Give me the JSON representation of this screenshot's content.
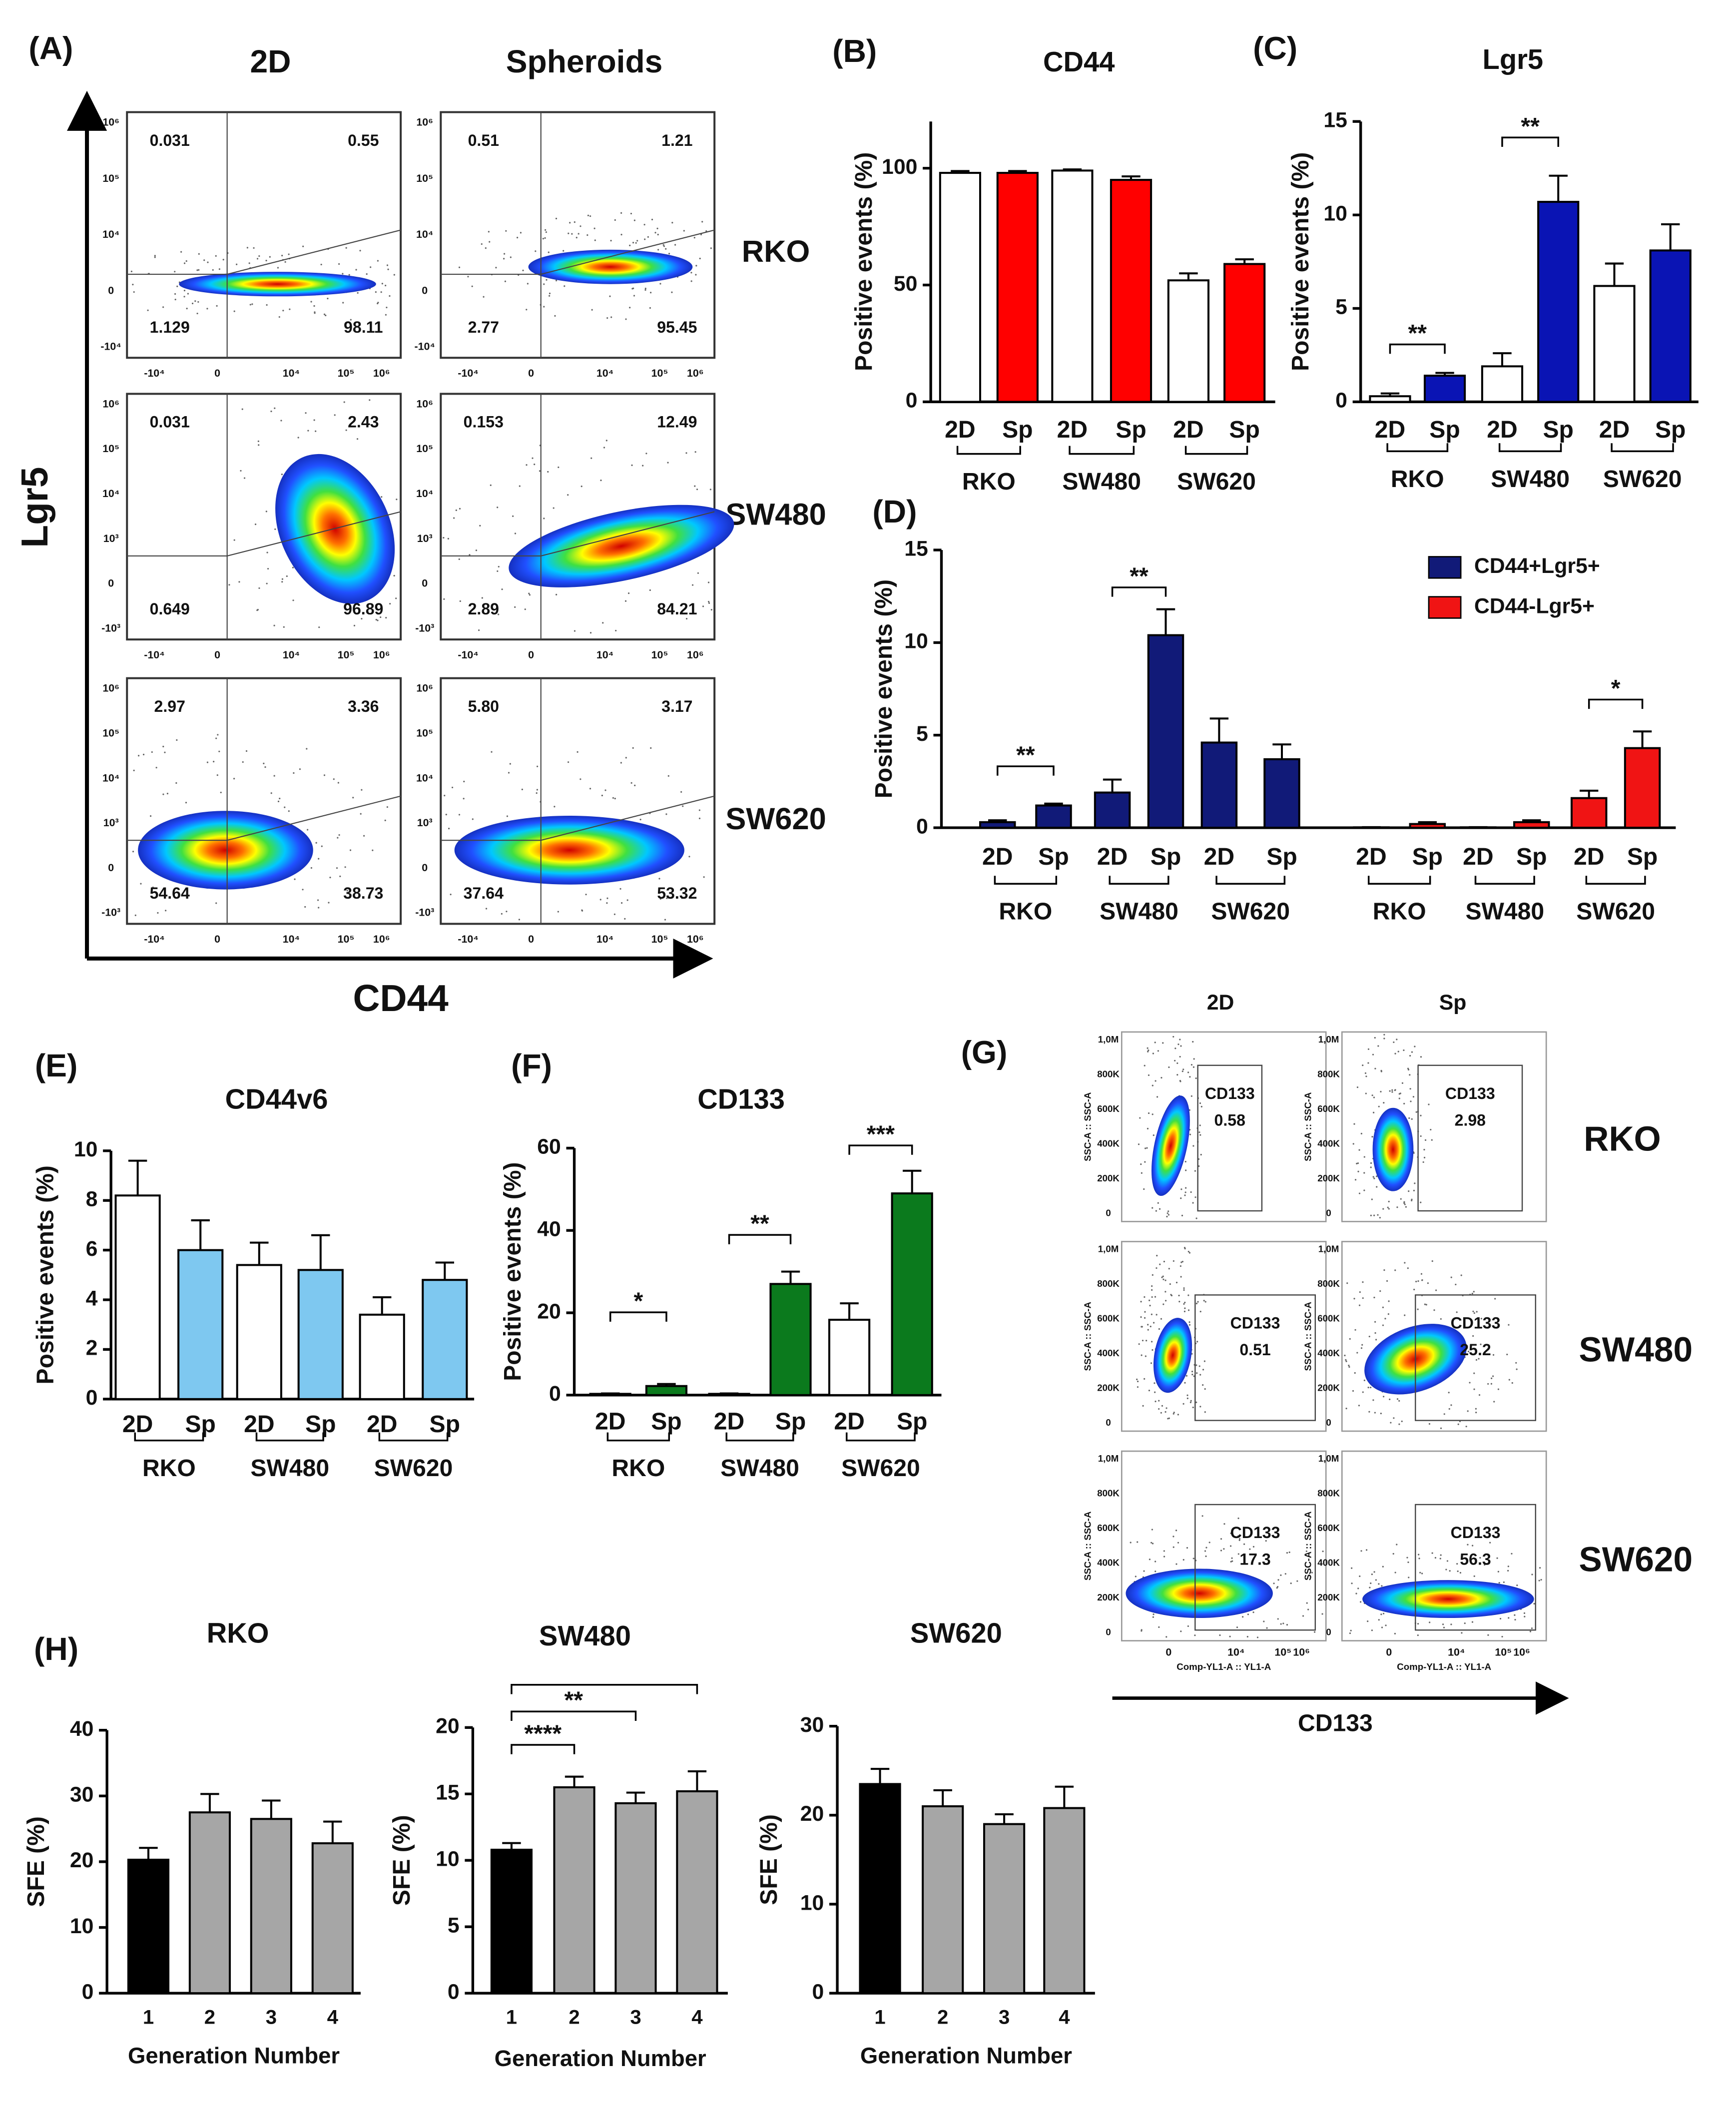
{
  "chart_data": [
    {
      "type": "flow",
      "panel": "(A)",
      "columns": [
        "2D",
        "Spheroids"
      ],
      "rows": [
        "RKO",
        "SW480",
        "SW620"
      ],
      "x_label": "CD44",
      "y_label": "Lgr5",
      "row_yticks": [
        [
          "10⁶",
          "10⁵",
          "10⁴",
          "0",
          "-10⁴"
        ],
        [
          "10⁶",
          "10⁵",
          "10⁴",
          "10³",
          "0",
          "-10³"
        ],
        [
          "10⁶",
          "10⁵",
          "10⁴",
          "10³",
          "0",
          "-10³"
        ]
      ],
      "xticks": [
        "-10⁴",
        "0",
        "10⁴",
        "10⁵",
        "10⁶"
      ],
      "plots": [
        {
          "quadrants": [
            "0.031",
            "0.55",
            "1.129",
            "98.11"
          ]
        },
        {
          "quadrants": [
            "0.51",
            "1.21",
            "2.77",
            "95.45"
          ]
        },
        {
          "quadrants": [
            "0.031",
            "2.43",
            "0.649",
            "96.89"
          ]
        },
        {
          "quadrants": [
            "0.153",
            "12.49",
            "2.89",
            "84.21"
          ]
        },
        {
          "quadrants": [
            "2.97",
            "3.36",
            "54.64",
            "38.73"
          ]
        },
        {
          "quadrants": [
            "5.80",
            "3.17",
            "37.64",
            "53.32"
          ]
        }
      ]
    },
    {
      "type": "bar",
      "panel": "(B)",
      "title": "CD44",
      "y_label": "Positive events (%)",
      "categories": [
        "2D",
        "Sp",
        "2D",
        "Sp",
        "2D",
        "Sp"
      ],
      "groups": [
        "RKO",
        "SW480",
        "SW620"
      ],
      "values": [
        98,
        98,
        99,
        95,
        52,
        59
      ],
      "errors": [
        0.8,
        0.8,
        0.5,
        1.5,
        3,
        2
      ],
      "colors": [
        "#ffffff",
        "#ff0000",
        "#ffffff",
        "#ff0000",
        "#ffffff",
        "#ff0000"
      ],
      "ylim": [
        0,
        120
      ],
      "yticks": [
        0,
        50,
        100
      ]
    },
    {
      "type": "bar",
      "panel": "(C)",
      "title": "Lgr5",
      "y_label": "Positive events (%)",
      "categories": [
        "2D",
        "Sp",
        "2D",
        "Sp",
        "2D",
        "Sp"
      ],
      "groups": [
        "RKO",
        "SW480",
        "SW620"
      ],
      "values": [
        0.3,
        1.4,
        1.9,
        10.7,
        6.2,
        8.1
      ],
      "errors": [
        0.15,
        0.15,
        0.7,
        1.4,
        1.2,
        1.4
      ],
      "colors": [
        "#ffffff",
        "#0a14b4",
        "#ffffff",
        "#0a14b4",
        "#ffffff",
        "#0a14b4"
      ],
      "ylim": [
        0,
        15
      ],
      "yticks": [
        0,
        5,
        10,
        15
      ],
      "annotations": [
        "**",
        "**"
      ]
    },
    {
      "type": "bar",
      "panel": "(D)",
      "y_label": "Positive events (%)",
      "categories": [
        "2D",
        "Sp",
        "2D",
        "Sp",
        "2D",
        "Sp"
      ],
      "groups": [
        "RKO",
        "SW480",
        "SW620"
      ],
      "series": [
        {
          "name": "CD44+Lgr5+",
          "color": "#111a78",
          "values": [
            0.3,
            1.2,
            1.9,
            10.4,
            4.6,
            3.7
          ],
          "errors": [
            0.1,
            0.1,
            0.7,
            1.4,
            1.3,
            0.8
          ]
        },
        {
          "name": "CD44-Lgr5+",
          "color": "#f01414",
          "values": [
            0.02,
            0.2,
            0.02,
            0.3,
            1.6,
            4.3
          ],
          "errors": [
            0.01,
            0.1,
            0.01,
            0.1,
            0.4,
            0.9
          ]
        }
      ],
      "ylim": [
        0,
        15
      ],
      "yticks": [
        0,
        5,
        10,
        15
      ],
      "annotations": [
        "**",
        "**",
        "*"
      ],
      "legend": "upper right"
    },
    {
      "type": "bar",
      "panel": "(E)",
      "title": "CD44v6",
      "y_label": "Positive events (%)",
      "categories": [
        "2D",
        "Sp",
        "2D",
        "Sp",
        "2D",
        "Sp"
      ],
      "groups": [
        "RKO",
        "SW480",
        "SW620"
      ],
      "values": [
        8.2,
        6.0,
        5.4,
        5.2,
        3.4,
        4.8
      ],
      "errors": [
        1.4,
        1.2,
        0.9,
        1.4,
        0.7,
        0.7
      ],
      "colors": [
        "#ffffff",
        "#7ec8f0",
        "#ffffff",
        "#7ec8f0",
        "#ffffff",
        "#7ec8f0"
      ],
      "ylim": [
        0,
        10
      ],
      "yticks": [
        0,
        2,
        4,
        6,
        8,
        10
      ]
    },
    {
      "type": "bar",
      "panel": "(F)",
      "title": "CD133",
      "y_label": "Positive events (%)",
      "categories": [
        "2D",
        "Sp",
        "2D",
        "Sp",
        "2D",
        "Sp"
      ],
      "groups": [
        "RKO",
        "SW480",
        "SW620"
      ],
      "values": [
        0.3,
        2.2,
        0.3,
        27,
        18.3,
        49
      ],
      "errors": [
        0.1,
        0.5,
        0.1,
        3,
        4,
        5.5
      ],
      "colors": [
        "#ffffff",
        "#0b7a1d",
        "#ffffff",
        "#0b7a1d",
        "#ffffff",
        "#0b7a1d"
      ],
      "ylim": [
        0,
        60
      ],
      "yticks": [
        0,
        20,
        40,
        60
      ],
      "annotations": [
        "*",
        "**",
        "***"
      ]
    },
    {
      "type": "gate",
      "panel": "(G)",
      "columns": [
        "2D",
        "Sp"
      ],
      "rows": [
        "RKO",
        "SW480",
        "SW620"
      ],
      "x_label": "CD133",
      "plot_x_label": "Comp-YL1-A :: YL1-A",
      "plot_y_label": "SSC-A :: SSC-A",
      "gate": "CD133",
      "yticks": [
        "1,0M",
        "800K",
        "600K",
        "400K",
        "200K",
        "0"
      ],
      "xticks": [
        "0",
        "10⁴",
        "10⁵",
        "10⁶"
      ],
      "plots": [
        "0.58",
        "2.98",
        "0.51",
        "25.2",
        "17.3",
        "56.3"
      ]
    },
    {
      "type": "bar",
      "panel": "(H)",
      "title": "RKO",
      "y_label": "SFE (%)",
      "x_label": "Generation Number",
      "categories": [
        "1",
        "2",
        "3",
        "4"
      ],
      "values": [
        20.3,
        27.5,
        26.5,
        22.8
      ],
      "errors": [
        1.8,
        2.8,
        2.8,
        3.3
      ],
      "colors": [
        "#000000",
        "#a6a6a6",
        "#a6a6a6",
        "#a6a6a6"
      ],
      "ylim": [
        0,
        40
      ],
      "yticks": [
        0,
        10,
        20,
        30,
        40
      ]
    },
    {
      "type": "bar",
      "title": "SW480",
      "y_label": "SFE (%)",
      "x_label": "Generation Number",
      "categories": [
        "1",
        "2",
        "3",
        "4"
      ],
      "values": [
        10.8,
        15.5,
        14.3,
        15.2
      ],
      "errors": [
        0.5,
        0.8,
        0.8,
        1.5
      ],
      "colors": [
        "#000000",
        "#a6a6a6",
        "#a6a6a6",
        "#a6a6a6"
      ],
      "ylim": [
        0,
        20
      ],
      "yticks": [
        0,
        5,
        10,
        15,
        20
      ],
      "annotations": [
        "****",
        "**"
      ]
    },
    {
      "type": "bar",
      "title": "SW620",
      "y_label": "SFE (%)",
      "x_label": "Generation Number",
      "categories": [
        "1",
        "2",
        "3",
        "4"
      ],
      "values": [
        23.5,
        21,
        19,
        20.8
      ],
      "errors": [
        1.7,
        1.8,
        1.1,
        2.4
      ],
      "colors": [
        "#000000",
        "#a6a6a6",
        "#a6a6a6",
        "#a6a6a6"
      ],
      "ylim": [
        0,
        30
      ],
      "yticks": [
        0,
        10,
        20,
        30
      ]
    }
  ]
}
